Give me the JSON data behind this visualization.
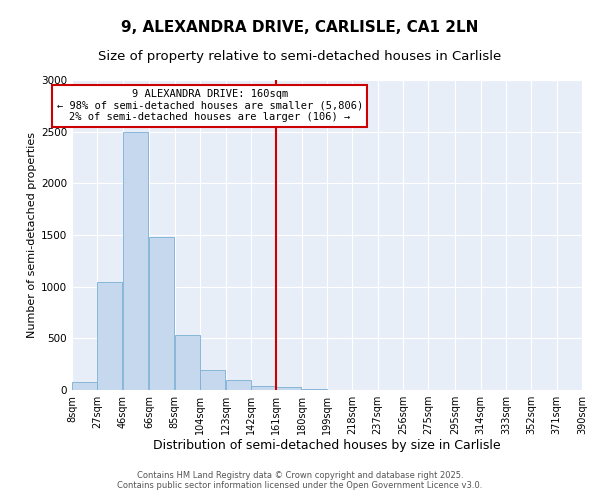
{
  "title": "9, ALEXANDRA DRIVE, CARLISLE, CA1 2LN",
  "subtitle": "Size of property relative to semi-detached houses in Carlisle",
  "xlabel": "Distribution of semi-detached houses by size in Carlisle",
  "ylabel": "Number of semi-detached properties",
  "footer_line1": "Contains HM Land Registry data © Crown copyright and database right 2025.",
  "footer_line2": "Contains public sector information licensed under the Open Government Licence v3.0.",
  "annotation_title": "9 ALEXANDRA DRIVE: 160sqm",
  "annotation_line1": "← 98% of semi-detached houses are smaller (5,806)",
  "annotation_line2": "2% of semi-detached houses are larger (106) →",
  "bar_color": "#c5d8ee",
  "bar_edge_color": "#7aafd4",
  "vline_color": "#cc0000",
  "annotation_box_edge_color": "#cc0000",
  "background_color": "#e8eef8",
  "grid_color": "#ffffff",
  "categories": [
    "8sqm",
    "27sqm",
    "46sqm",
    "66sqm",
    "85sqm",
    "104sqm",
    "123sqm",
    "142sqm",
    "161sqm",
    "180sqm",
    "199sqm",
    "218sqm",
    "237sqm",
    "256sqm",
    "275sqm",
    "295sqm",
    "314sqm",
    "333sqm",
    "352sqm",
    "371sqm",
    "390sqm"
  ],
  "bin_edges": [
    8,
    27,
    46,
    66,
    85,
    104,
    123,
    142,
    161,
    180,
    199,
    218,
    237,
    256,
    275,
    295,
    314,
    333,
    352,
    371,
    390
  ],
  "bar_heights": [
    75,
    1050,
    2500,
    1480,
    530,
    195,
    100,
    40,
    30,
    10,
    0,
    0,
    0,
    0,
    0,
    0,
    0,
    0,
    0,
    0
  ],
  "vline_x": 161,
  "ylim": [
    0,
    3000
  ],
  "yticks": [
    0,
    500,
    1000,
    1500,
    2000,
    2500,
    3000
  ],
  "title_fontsize": 11,
  "subtitle_fontsize": 9.5,
  "xlabel_fontsize": 9,
  "ylabel_fontsize": 8,
  "tick_fontsize": 7.5,
  "annotation_fontsize": 7.5,
  "footer_fontsize": 6
}
